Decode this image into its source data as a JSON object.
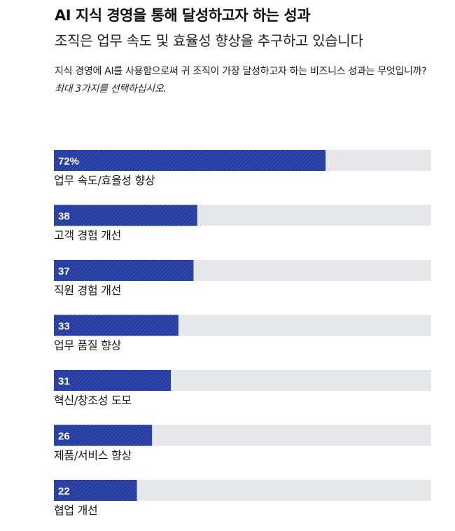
{
  "header": {
    "title": "AI 지식 경영을 통해 달성하고자 하는 성과",
    "subtitle": "조직은 업무 속도 및 효율성 향상을 추구하고 있습니다",
    "question": "지식 경영에 AI를 사용함으로써 귀 조직이 가장 달성하고자 하는 비즈니스 성과는 무엇입니까?",
    "instruction": "최대 3가지를 선택하십시오."
  },
  "chart_data": {
    "type": "bar",
    "orientation": "horizontal",
    "categories": [
      "업무 속도/효율성 향상",
      "고객 경험 개선",
      "직원 경험 개선",
      "업무 품질 향상",
      "혁신/창조성 도모",
      "제품/서비스 향상",
      "협업 개선"
    ],
    "values": [
      72,
      38,
      37,
      33,
      31,
      26,
      22
    ],
    "value_labels": [
      "72%",
      "38",
      "37",
      "33",
      "31",
      "26",
      "22"
    ],
    "xlim": [
      0,
      100
    ],
    "title": "",
    "xlabel": "",
    "ylabel": "",
    "grid": false,
    "colors": {
      "bar": "#253b9e",
      "bar_hatch": "#4a62c4",
      "track": "#e6e7eb"
    }
  }
}
